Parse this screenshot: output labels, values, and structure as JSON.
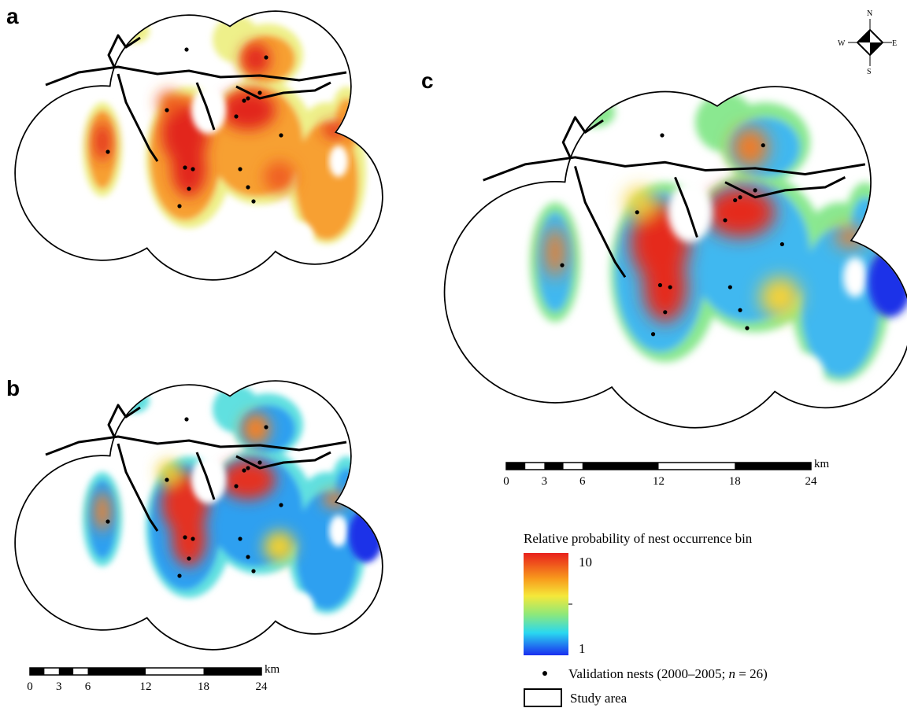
{
  "panels": [
    {
      "label": "a"
    },
    {
      "label": "b"
    },
    {
      "label": "c"
    }
  ],
  "compass": {
    "north": "N",
    "south": "S",
    "east": "E",
    "west": "W"
  },
  "scale_bars": [
    {
      "ticks": [
        0,
        3,
        6,
        12,
        18,
        24
      ],
      "unit": "km"
    },
    {
      "ticks": [
        0,
        3,
        6,
        12,
        18,
        24
      ],
      "unit": "km"
    }
  ],
  "legend": {
    "title": "Relative probability of nest occurrence bin",
    "max_label": "10",
    "min_label": "1",
    "nests_before": "Validation nests (2000–2005; ",
    "nests_italic": "n",
    "nests_after": " = 26)",
    "study_area": "Study area"
  }
}
